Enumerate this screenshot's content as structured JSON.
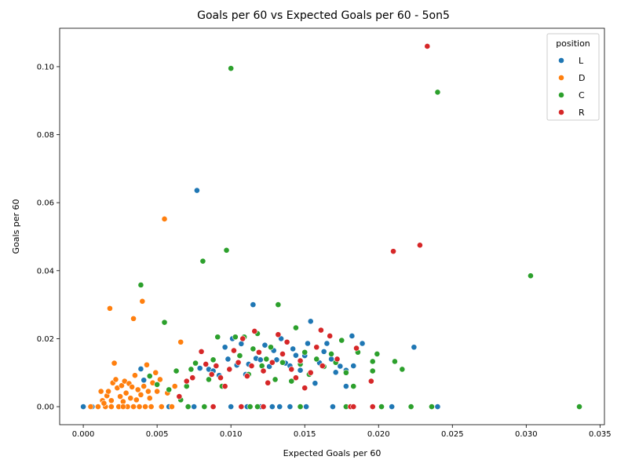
{
  "chart_data": {
    "type": "scatter",
    "title": "Goals per 60 vs Expected Goals per 60 - 5on5",
    "xlabel": "Expected Goals per 60",
    "ylabel": "Goals per 60",
    "xlim": [
      -0.0016,
      0.0353
    ],
    "ylim": [
      -0.0053,
      0.1113
    ],
    "xticks": [
      "0.000",
      "0.005",
      "0.010",
      "0.015",
      "0.020",
      "0.025",
      "0.030",
      "0.035"
    ],
    "yticks": [
      "0.00",
      "0.02",
      "0.04",
      "0.06",
      "0.08",
      "0.10"
    ],
    "grid": false,
    "legend": {
      "title": "position",
      "placement": "top-right",
      "entries": [
        {
          "name": "L",
          "color": "#1f77b4"
        },
        {
          "name": "D",
          "color": "#ff7f0e"
        },
        {
          "name": "C",
          "color": "#2ca02c"
        },
        {
          "name": "R",
          "color": "#d62728"
        }
      ]
    },
    "series": [
      {
        "name": "L",
        "color": "#1f77b4",
        "points": [
          [
            0.0,
            0.0
          ],
          [
            0.0006,
            0.0
          ],
          [
            0.0039,
            0.0111
          ],
          [
            0.0041,
            0.0078
          ],
          [
            0.0058,
            0.0
          ],
          [
            0.0075,
            0.0
          ],
          [
            0.0077,
            0.0636
          ],
          [
            0.0079,
            0.0113
          ],
          [
            0.0085,
            0.011
          ],
          [
            0.0088,
            0.0105
          ],
          [
            0.0092,
            0.0092
          ],
          [
            0.0096,
            0.0175
          ],
          [
            0.0098,
            0.014
          ],
          [
            0.0101,
            0.02
          ],
          [
            0.0104,
            0.0122
          ],
          [
            0.0107,
            0.0185
          ],
          [
            0.011,
            0.0095
          ],
          [
            0.0112,
            0.0125
          ],
          [
            0.0115,
            0.03
          ],
          [
            0.0117,
            0.0142
          ],
          [
            0.012,
            0.0138
          ],
          [
            0.0123,
            0.0181
          ],
          [
            0.0126,
            0.0118
          ],
          [
            0.0129,
            0.0165
          ],
          [
            0.0131,
            0.0138
          ],
          [
            0.0134,
            0.02
          ],
          [
            0.0137,
            0.0128
          ],
          [
            0.014,
            0.012
          ],
          [
            0.0142,
            0.017
          ],
          [
            0.0144,
            0.0151
          ],
          [
            0.0147,
            0.0107
          ],
          [
            0.015,
            0.015
          ],
          [
            0.0152,
            0.0186
          ],
          [
            0.0154,
            0.0251
          ],
          [
            0.0157,
            0.0069
          ],
          [
            0.016,
            0.0129
          ],
          [
            0.0163,
            0.0162
          ],
          [
            0.0165,
            0.0186
          ],
          [
            0.0168,
            0.014
          ],
          [
            0.0171,
            0.0101
          ],
          [
            0.0174,
            0.0119
          ],
          [
            0.0178,
            0.0107
          ],
          [
            0.0178,
            0.006
          ],
          [
            0.0182,
            0.0208
          ],
          [
            0.0183,
            0.012
          ],
          [
            0.0189,
            0.0186
          ],
          [
            0.0224,
            0.0175
          ],
          [
            0.012,
            0.0
          ],
          [
            0.0128,
            0.0
          ],
          [
            0.0133,
            0.0
          ],
          [
            0.014,
            0.0
          ],
          [
            0.0151,
            0.0
          ],
          [
            0.0169,
            0.0
          ],
          [
            0.0209,
            0.0
          ],
          [
            0.024,
            0.0
          ],
          [
            0.01,
            0.0
          ],
          [
            0.0111,
            0.0
          ]
        ]
      },
      {
        "name": "D",
        "color": "#ff7f0e",
        "points": [
          [
            0.0005,
            0.0
          ],
          [
            0.001,
            0.0
          ],
          [
            0.0012,
            0.0045
          ],
          [
            0.0013,
            0.0018
          ],
          [
            0.0015,
            0.0
          ],
          [
            0.0016,
            0.0032
          ],
          [
            0.0017,
            0.0045
          ],
          [
            0.0018,
            0.0289
          ],
          [
            0.0019,
            0.0018
          ],
          [
            0.002,
            0.007
          ],
          [
            0.0021,
            0.0128
          ],
          [
            0.0022,
            0.008
          ],
          [
            0.0023,
            0.0055
          ],
          [
            0.0024,
            0.0
          ],
          [
            0.0025,
            0.003
          ],
          [
            0.0026,
            0.0062
          ],
          [
            0.0027,
            0.0015
          ],
          [
            0.0028,
            0.0075
          ],
          [
            0.0029,
            0.004
          ],
          [
            0.003,
            0.0
          ],
          [
            0.0031,
            0.0068
          ],
          [
            0.0032,
            0.0025
          ],
          [
            0.0033,
            0.0058
          ],
          [
            0.0034,
            0.0259
          ],
          [
            0.0035,
            0.0092
          ],
          [
            0.0036,
            0.002
          ],
          [
            0.0037,
            0.005
          ],
          [
            0.0038,
            0.0
          ],
          [
            0.0039,
            0.0035
          ],
          [
            0.004,
            0.031
          ],
          [
            0.0041,
            0.006
          ],
          [
            0.0042,
            0.0
          ],
          [
            0.0043,
            0.0123
          ],
          [
            0.0044,
            0.0045
          ],
          [
            0.0045,
            0.0025
          ],
          [
            0.0047,
            0.007
          ],
          [
            0.0049,
            0.01
          ],
          [
            0.005,
            0.0045
          ],
          [
            0.0052,
            0.008
          ],
          [
            0.0055,
            0.0552
          ],
          [
            0.0057,
            0.004
          ],
          [
            0.006,
            0.0
          ],
          [
            0.0062,
            0.006
          ],
          [
            0.0066,
            0.019
          ],
          [
            0.0053,
            0.0
          ],
          [
            0.0046,
            0.0
          ],
          [
            0.0014,
            0.001
          ],
          [
            0.0019,
            0.0
          ],
          [
            0.0027,
            0.0
          ],
          [
            0.0034,
            0.0
          ]
        ]
      },
      {
        "name": "C",
        "color": "#2ca02c",
        "points": [
          [
            0.0039,
            0.0358
          ],
          [
            0.0045,
            0.009
          ],
          [
            0.005,
            0.0065
          ],
          [
            0.0055,
            0.0248
          ],
          [
            0.0058,
            0.005
          ],
          [
            0.0063,
            0.0105
          ],
          [
            0.0066,
            0.002
          ],
          [
            0.007,
            0.006
          ],
          [
            0.0073,
            0.011
          ],
          [
            0.0076,
            0.0128
          ],
          [
            0.0081,
            0.0428
          ],
          [
            0.0085,
            0.008
          ],
          [
            0.0088,
            0.0138
          ],
          [
            0.0091,
            0.0205
          ],
          [
            0.0094,
            0.006
          ],
          [
            0.0097,
            0.046
          ],
          [
            0.01,
            0.0995
          ],
          [
            0.0103,
            0.0205
          ],
          [
            0.0106,
            0.015
          ],
          [
            0.0109,
            0.0205
          ],
          [
            0.0112,
            0.0095
          ],
          [
            0.0115,
            0.017
          ],
          [
            0.0118,
            0.0215
          ],
          [
            0.0121,
            0.012
          ],
          [
            0.0124,
            0.014
          ],
          [
            0.0127,
            0.0175
          ],
          [
            0.013,
            0.008
          ],
          [
            0.0132,
            0.03
          ],
          [
            0.0135,
            0.013
          ],
          [
            0.0138,
            0.019
          ],
          [
            0.0141,
            0.0075
          ],
          [
            0.0144,
            0.0232
          ],
          [
            0.0147,
            0.0125
          ],
          [
            0.015,
            0.016
          ],
          [
            0.0153,
            0.0095
          ],
          [
            0.0158,
            0.014
          ],
          [
            0.0163,
            0.0118
          ],
          [
            0.0168,
            0.0155
          ],
          [
            0.0171,
            0.013
          ],
          [
            0.0175,
            0.0195
          ],
          [
            0.0178,
            0.01
          ],
          [
            0.0183,
            0.006
          ],
          [
            0.0186,
            0.016
          ],
          [
            0.0196,
            0.0133
          ],
          [
            0.0196,
            0.0105
          ],
          [
            0.0199,
            0.0155
          ],
          [
            0.0211,
            0.0133
          ],
          [
            0.0216,
            0.011
          ],
          [
            0.024,
            0.0925
          ],
          [
            0.0303,
            0.0385
          ],
          [
            0.0336,
            0.0
          ],
          [
            0.0236,
            0.0
          ],
          [
            0.0222,
            0.0
          ],
          [
            0.0202,
            0.0
          ],
          [
            0.0178,
            0.0
          ],
          [
            0.0147,
            0.0
          ],
          [
            0.0118,
            0.0
          ],
          [
            0.0082,
            0.0
          ],
          [
            0.0071,
            0.0
          ],
          [
            0.0113,
            0.0
          ]
        ]
      },
      {
        "name": "R",
        "color": "#d62728",
        "points": [
          [
            0.0065,
            0.003
          ],
          [
            0.007,
            0.0075
          ],
          [
            0.0074,
            0.0085
          ],
          [
            0.008,
            0.0162
          ],
          [
            0.0083,
            0.0125
          ],
          [
            0.0087,
            0.0095
          ],
          [
            0.009,
            0.012
          ],
          [
            0.0093,
            0.0085
          ],
          [
            0.0096,
            0.006
          ],
          [
            0.0099,
            0.011
          ],
          [
            0.0102,
            0.0165
          ],
          [
            0.0105,
            0.013
          ],
          [
            0.0108,
            0.02
          ],
          [
            0.0111,
            0.009
          ],
          [
            0.0114,
            0.012
          ],
          [
            0.0116,
            0.0222
          ],
          [
            0.0119,
            0.016
          ],
          [
            0.0122,
            0.0105
          ],
          [
            0.0125,
            0.007
          ],
          [
            0.0128,
            0.013
          ],
          [
            0.0132,
            0.0212
          ],
          [
            0.0135,
            0.0155
          ],
          [
            0.0138,
            0.019
          ],
          [
            0.0141,
            0.011
          ],
          [
            0.0144,
            0.0085
          ],
          [
            0.0147,
            0.0135
          ],
          [
            0.015,
            0.0055
          ],
          [
            0.0154,
            0.01
          ],
          [
            0.0158,
            0.0175
          ],
          [
            0.0161,
            0.0225
          ],
          [
            0.0162,
            0.012
          ],
          [
            0.0167,
            0.0208
          ],
          [
            0.0172,
            0.014
          ],
          [
            0.0181,
            0.0
          ],
          [
            0.0183,
            0.0
          ],
          [
            0.0185,
            0.0172
          ],
          [
            0.0195,
            0.0075
          ],
          [
            0.0196,
            0.0
          ],
          [
            0.021,
            0.0457
          ],
          [
            0.0228,
            0.0475
          ],
          [
            0.0233,
            0.106
          ],
          [
            0.0088,
            0.0
          ],
          [
            0.0107,
            0.0
          ],
          [
            0.0122,
            0.0
          ]
        ]
      }
    ]
  }
}
